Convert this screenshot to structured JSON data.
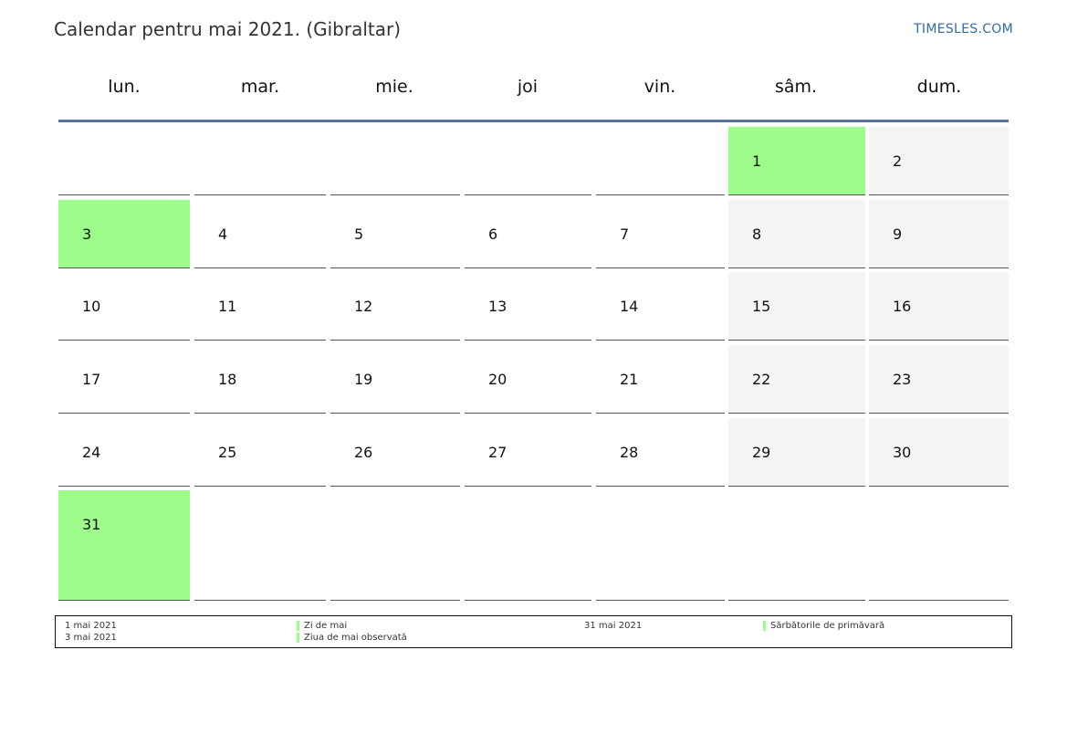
{
  "header": {
    "title": "Calendar pentru mai 2021. (Gibraltar)",
    "brand": "TIMESLES.COM"
  },
  "weekdays": [
    "lun.",
    "mar.",
    "mie.",
    "joi",
    "vin.",
    "sâm.",
    "dum."
  ],
  "colors": {
    "holiday": "#9dfc8a",
    "weekend": "#f4f4f4",
    "header_rule": "#5a7599",
    "brand": "#2e6da4"
  },
  "weeks": [
    [
      null,
      null,
      null,
      null,
      null,
      {
        "day": "1",
        "type": "holiday"
      },
      {
        "day": "2",
        "type": "weekend"
      }
    ],
    [
      {
        "day": "3",
        "type": "holiday"
      },
      {
        "day": "4",
        "type": "weekday"
      },
      {
        "day": "5",
        "type": "weekday"
      },
      {
        "day": "6",
        "type": "weekday"
      },
      {
        "day": "7",
        "type": "weekday"
      },
      {
        "day": "8",
        "type": "weekend"
      },
      {
        "day": "9",
        "type": "weekend"
      }
    ],
    [
      {
        "day": "10",
        "type": "weekday"
      },
      {
        "day": "11",
        "type": "weekday"
      },
      {
        "day": "12",
        "type": "weekday"
      },
      {
        "day": "13",
        "type": "weekday"
      },
      {
        "day": "14",
        "type": "weekday"
      },
      {
        "day": "15",
        "type": "weekend"
      },
      {
        "day": "16",
        "type": "weekend"
      }
    ],
    [
      {
        "day": "17",
        "type": "weekday"
      },
      {
        "day": "18",
        "type": "weekday"
      },
      {
        "day": "19",
        "type": "weekday"
      },
      {
        "day": "20",
        "type": "weekday"
      },
      {
        "day": "21",
        "type": "weekday"
      },
      {
        "day": "22",
        "type": "weekend"
      },
      {
        "day": "23",
        "type": "weekend"
      }
    ],
    [
      {
        "day": "24",
        "type": "weekday"
      },
      {
        "day": "25",
        "type": "weekday"
      },
      {
        "day": "26",
        "type": "weekday"
      },
      {
        "day": "27",
        "type": "weekday"
      },
      {
        "day": "28",
        "type": "weekday"
      },
      {
        "day": "29",
        "type": "weekend"
      },
      {
        "day": "30",
        "type": "weekend"
      }
    ],
    [
      {
        "day": "31",
        "type": "holiday"
      },
      null,
      null,
      null,
      null,
      null,
      null
    ]
  ],
  "legend": [
    {
      "date": "1 mai 2021",
      "name": "Zi de mai"
    },
    {
      "date": "3 mai 2021",
      "name": "Ziua de mai observată"
    },
    {
      "date": "31 mai 2021",
      "name": "Sărbătorile de primăvară"
    }
  ]
}
